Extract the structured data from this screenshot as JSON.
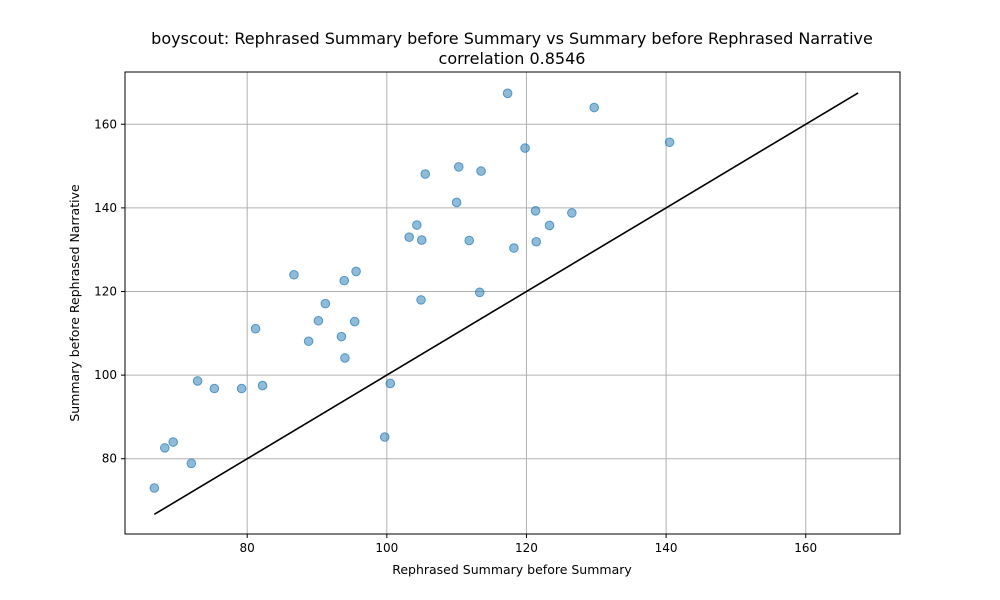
{
  "chart_data": {
    "type": "scatter",
    "title": "boyscout: Rephrased Summary before Summary vs Summary before Rephrased Narrative",
    "subtitle": "correlation 0.8546",
    "xlabel": "Rephrased Summary before Summary",
    "ylabel": "Summary before Rephrased Narrative",
    "xlim": [
      62.5,
      173.5
    ],
    "ylim": [
      62.0,
      172.5
    ],
    "xticks": [
      80,
      100,
      120,
      140,
      160
    ],
    "yticks": [
      80,
      100,
      120,
      140,
      160
    ],
    "xtick_labels": [
      "80",
      "100",
      "120",
      "140",
      "160"
    ],
    "ytick_labels": [
      "80",
      "100",
      "120",
      "140",
      "160"
    ],
    "grid": true,
    "point_color": "#1f77b4",
    "line_color": "#000000",
    "reference_line": {
      "x": [
        66.7,
        167.5
      ],
      "y": [
        66.7,
        167.5
      ]
    },
    "points": [
      {
        "x": 66.7,
        "y": 73.0
      },
      {
        "x": 68.2,
        "y": 82.6
      },
      {
        "x": 69.4,
        "y": 84.0
      },
      {
        "x": 72.0,
        "y": 78.9
      },
      {
        "x": 72.9,
        "y": 98.6
      },
      {
        "x": 75.3,
        "y": 96.8
      },
      {
        "x": 79.2,
        "y": 96.8
      },
      {
        "x": 81.2,
        "y": 111.1
      },
      {
        "x": 82.2,
        "y": 97.5
      },
      {
        "x": 86.7,
        "y": 124.0
      },
      {
        "x": 88.8,
        "y": 108.1
      },
      {
        "x": 90.2,
        "y": 113.0
      },
      {
        "x": 91.2,
        "y": 117.1
      },
      {
        "x": 93.5,
        "y": 109.2
      },
      {
        "x": 93.9,
        "y": 122.6
      },
      {
        "x": 94.0,
        "y": 104.1
      },
      {
        "x": 95.4,
        "y": 112.8
      },
      {
        "x": 95.6,
        "y": 124.8
      },
      {
        "x": 99.7,
        "y": 85.2
      },
      {
        "x": 100.5,
        "y": 98.0
      },
      {
        "x": 103.2,
        "y": 133.0
      },
      {
        "x": 104.3,
        "y": 135.9
      },
      {
        "x": 104.9,
        "y": 118.0
      },
      {
        "x": 105.0,
        "y": 132.3
      },
      {
        "x": 105.5,
        "y": 148.1
      },
      {
        "x": 110.0,
        "y": 141.3
      },
      {
        "x": 110.3,
        "y": 149.8
      },
      {
        "x": 111.8,
        "y": 132.2
      },
      {
        "x": 113.3,
        "y": 119.8
      },
      {
        "x": 113.5,
        "y": 148.8
      },
      {
        "x": 117.3,
        "y": 167.4
      },
      {
        "x": 118.2,
        "y": 130.4
      },
      {
        "x": 119.8,
        "y": 154.3
      },
      {
        "x": 121.3,
        "y": 139.3
      },
      {
        "x": 121.4,
        "y": 131.9
      },
      {
        "x": 123.3,
        "y": 135.8
      },
      {
        "x": 126.5,
        "y": 138.8
      },
      {
        "x": 129.7,
        "y": 164.0
      },
      {
        "x": 140.5,
        "y": 155.7
      }
    ]
  }
}
